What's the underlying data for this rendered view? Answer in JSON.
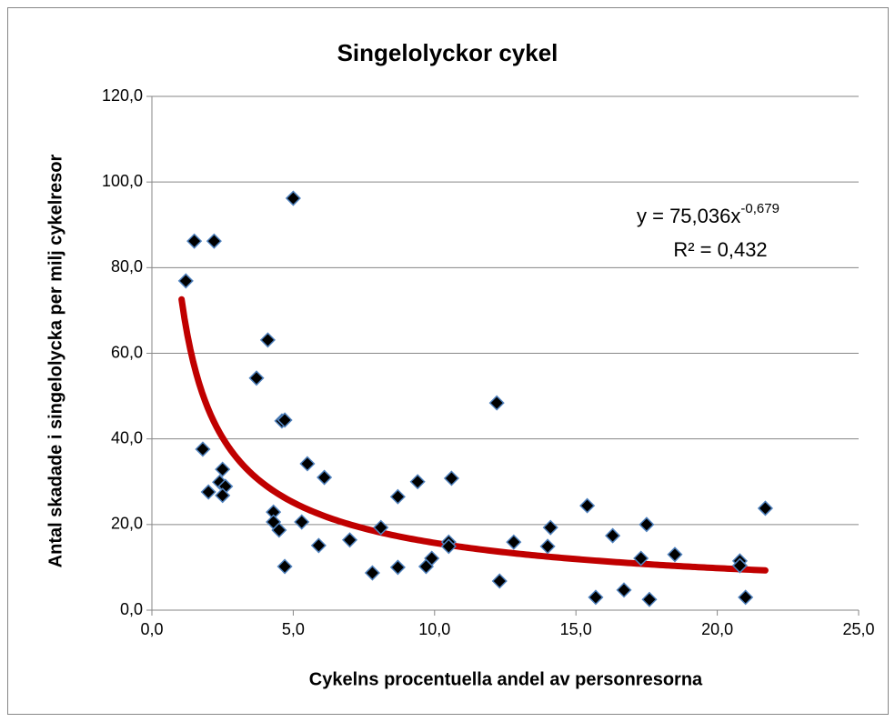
{
  "chart_data": {
    "type": "scatter",
    "title": "Singelolyckor cykel",
    "x_label": "Cykelns procentuella andel av personresorna",
    "y_label": "Antal skadade i singelolycka per milj cykelresor",
    "annotations": {
      "equation": "y = 75,036x",
      "exponent": "-0,679",
      "r2": "R² = 0,432"
    },
    "x": [
      1.2,
      1.5,
      2.2,
      5.0,
      4.1,
      3.7,
      4.6,
      4.7,
      1.8,
      2.5,
      2.4,
      2.0,
      2.6,
      2.5,
      6.1,
      5.5,
      4.3,
      4.3,
      4.5,
      5.3,
      5.9,
      4.7,
      7.0,
      7.8,
      8.1,
      8.7,
      8.7,
      9.4,
      9.7,
      9.9,
      10.6,
      10.5,
      10.5,
      12.2,
      12.3,
      12.8,
      14.1,
      14.0,
      15.4,
      15.7,
      16.3,
      16.7,
      17.3,
      17.5,
      17.6,
      18.5,
      20.8,
      20.8,
      21.0,
      21.7
    ],
    "values": [
      76.9,
      86.2,
      86.2,
      96.2,
      63.1,
      54.2,
      44.2,
      44.4,
      37.6,
      32.9,
      29.9,
      27.6,
      28.9,
      26.8,
      31.0,
      34.2,
      22.9,
      20.6,
      18.7,
      20.6,
      15.1,
      10.2,
      16.4,
      8.7,
      19.3,
      10.0,
      26.5,
      30.0,
      10.2,
      12.1,
      30.8,
      15.9,
      14.9,
      48.4,
      6.8,
      15.9,
      19.3,
      14.9,
      24.4,
      3.0,
      17.4,
      4.7,
      12.1,
      20.0,
      2.5,
      13.0,
      11.5,
      10.4,
      3.0,
      23.8
    ],
    "color": "#000000",
    "marker_edge": "#4f81bd",
    "trendline": {
      "type": "power",
      "a": 75.036,
      "b": -0.679,
      "xlim": [
        1.05,
        21.7
      ],
      "color": "#c00000"
    },
    "xlim": [
      0,
      25
    ],
    "ylim": [
      0,
      120
    ],
    "xticks": [
      {
        "value": 0,
        "label": "0,0"
      },
      {
        "value": 5,
        "label": "5,0"
      },
      {
        "value": 10,
        "label": "10,0"
      },
      {
        "value": 15,
        "label": "15,0"
      },
      {
        "value": 20,
        "label": "20,0"
      },
      {
        "value": 25,
        "label": "25,0"
      }
    ],
    "yticks": [
      {
        "value": 0,
        "label": "0,0"
      },
      {
        "value": 20,
        "label": "20,0"
      },
      {
        "value": 40,
        "label": "40,0"
      },
      {
        "value": 60,
        "label": "60,0"
      },
      {
        "value": 80,
        "label": "80,0"
      },
      {
        "value": 100,
        "label": "100,0"
      },
      {
        "value": 120,
        "label": "120,0"
      }
    ],
    "grid": true
  }
}
